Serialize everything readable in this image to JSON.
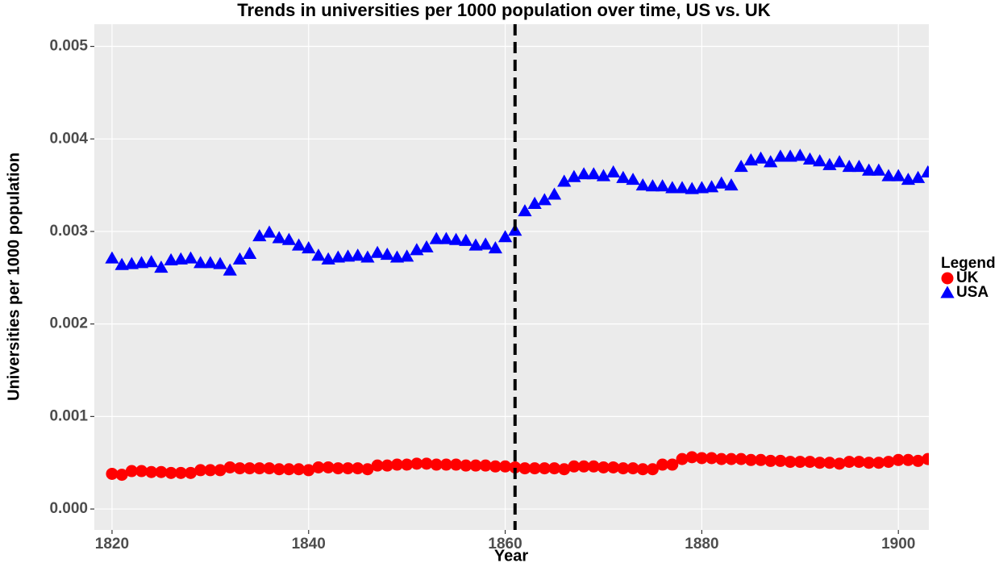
{
  "chart_data": {
    "type": "scatter",
    "title": "Trends in universities per 1000 population over time, US vs. UK",
    "x_label": "Year",
    "y_label": "Universities per 1000 population",
    "legend_title": "Legend",
    "legend_position": "right",
    "grid": true,
    "vline": 1861,
    "x": [
      1820,
      1821,
      1822,
      1823,
      1824,
      1825,
      1826,
      1827,
      1828,
      1829,
      1830,
      1831,
      1832,
      1833,
      1834,
      1835,
      1836,
      1837,
      1838,
      1839,
      1840,
      1841,
      1842,
      1843,
      1844,
      1845,
      1846,
      1847,
      1848,
      1849,
      1850,
      1851,
      1852,
      1853,
      1854,
      1855,
      1856,
      1857,
      1858,
      1859,
      1860,
      1861,
      1862,
      1863,
      1864,
      1865,
      1866,
      1867,
      1868,
      1869,
      1870,
      1871,
      1872,
      1873,
      1874,
      1875,
      1876,
      1877,
      1878,
      1879,
      1880,
      1881,
      1882,
      1883,
      1884,
      1885,
      1886,
      1887,
      1888,
      1889,
      1890,
      1891,
      1892,
      1893,
      1894,
      1895,
      1896,
      1897,
      1898,
      1899,
      1900,
      1901,
      1902,
      1903
    ],
    "series": [
      {
        "name": "UK",
        "color": "#ff0000",
        "marker": "circle",
        "values": [
          0.00038,
          0.00037,
          0.00041,
          0.00041,
          0.0004,
          0.0004,
          0.00039,
          0.00039,
          0.00039,
          0.00042,
          0.00042,
          0.00042,
          0.00045,
          0.00044,
          0.00044,
          0.00044,
          0.00044,
          0.00043,
          0.00043,
          0.00043,
          0.00042,
          0.00045,
          0.00045,
          0.00044,
          0.00044,
          0.00044,
          0.00043,
          0.00047,
          0.00047,
          0.00048,
          0.00048,
          0.00049,
          0.00049,
          0.00048,
          0.00048,
          0.00048,
          0.00047,
          0.00047,
          0.00047,
          0.00046,
          0.00046,
          0.00045,
          0.00044,
          0.00044,
          0.00044,
          0.00044,
          0.00043,
          0.00046,
          0.00046,
          0.00046,
          0.00045,
          0.00045,
          0.00044,
          0.00044,
          0.00043,
          0.00043,
          0.00048,
          0.00048,
          0.00054,
          0.00056,
          0.00055,
          0.00055,
          0.00054,
          0.00054,
          0.00054,
          0.00053,
          0.00053,
          0.00052,
          0.00052,
          0.00051,
          0.00051,
          0.00051,
          0.0005,
          0.0005,
          0.00049,
          0.00051,
          0.00051,
          0.0005,
          0.0005,
          0.00051,
          0.00053,
          0.00053,
          0.00052,
          0.00054
        ]
      },
      {
        "name": "USA",
        "color": "#0000ff",
        "marker": "triangle",
        "values": [
          0.00271,
          0.00264,
          0.00265,
          0.00266,
          0.00267,
          0.00261,
          0.00269,
          0.0027,
          0.00271,
          0.00266,
          0.00266,
          0.00265,
          0.00258,
          0.0027,
          0.00276,
          0.00295,
          0.00299,
          0.00293,
          0.00291,
          0.00285,
          0.00282,
          0.00274,
          0.0027,
          0.00272,
          0.00273,
          0.00274,
          0.00272,
          0.00277,
          0.00275,
          0.00272,
          0.00273,
          0.0028,
          0.00283,
          0.00292,
          0.00292,
          0.00291,
          0.0029,
          0.00285,
          0.00286,
          0.00282,
          0.00294,
          0.00301,
          0.00322,
          0.0033,
          0.00334,
          0.0034,
          0.00354,
          0.00359,
          0.00362,
          0.00362,
          0.0036,
          0.00364,
          0.00358,
          0.00356,
          0.0035,
          0.00349,
          0.00349,
          0.00347,
          0.00347,
          0.00346,
          0.00347,
          0.00348,
          0.00352,
          0.0035,
          0.0037,
          0.00377,
          0.00379,
          0.00375,
          0.00381,
          0.00381,
          0.00382,
          0.00378,
          0.00376,
          0.00372,
          0.00375,
          0.0037,
          0.0037,
          0.00366,
          0.00366,
          0.0036,
          0.0036,
          0.00356,
          0.00358,
          0.00364
        ]
      }
    ],
    "xlim": [
      1818.2,
      1903.1
    ],
    "xticks": [
      1820,
      1840,
      1860,
      1880,
      1900
    ],
    "ylim": [
      -0.000226,
      0.00524
    ],
    "yticks": [
      {
        "value": 0,
        "label": "0.000"
      },
      0.001,
      0.002,
      0.003,
      0.004,
      0.005
    ]
  }
}
